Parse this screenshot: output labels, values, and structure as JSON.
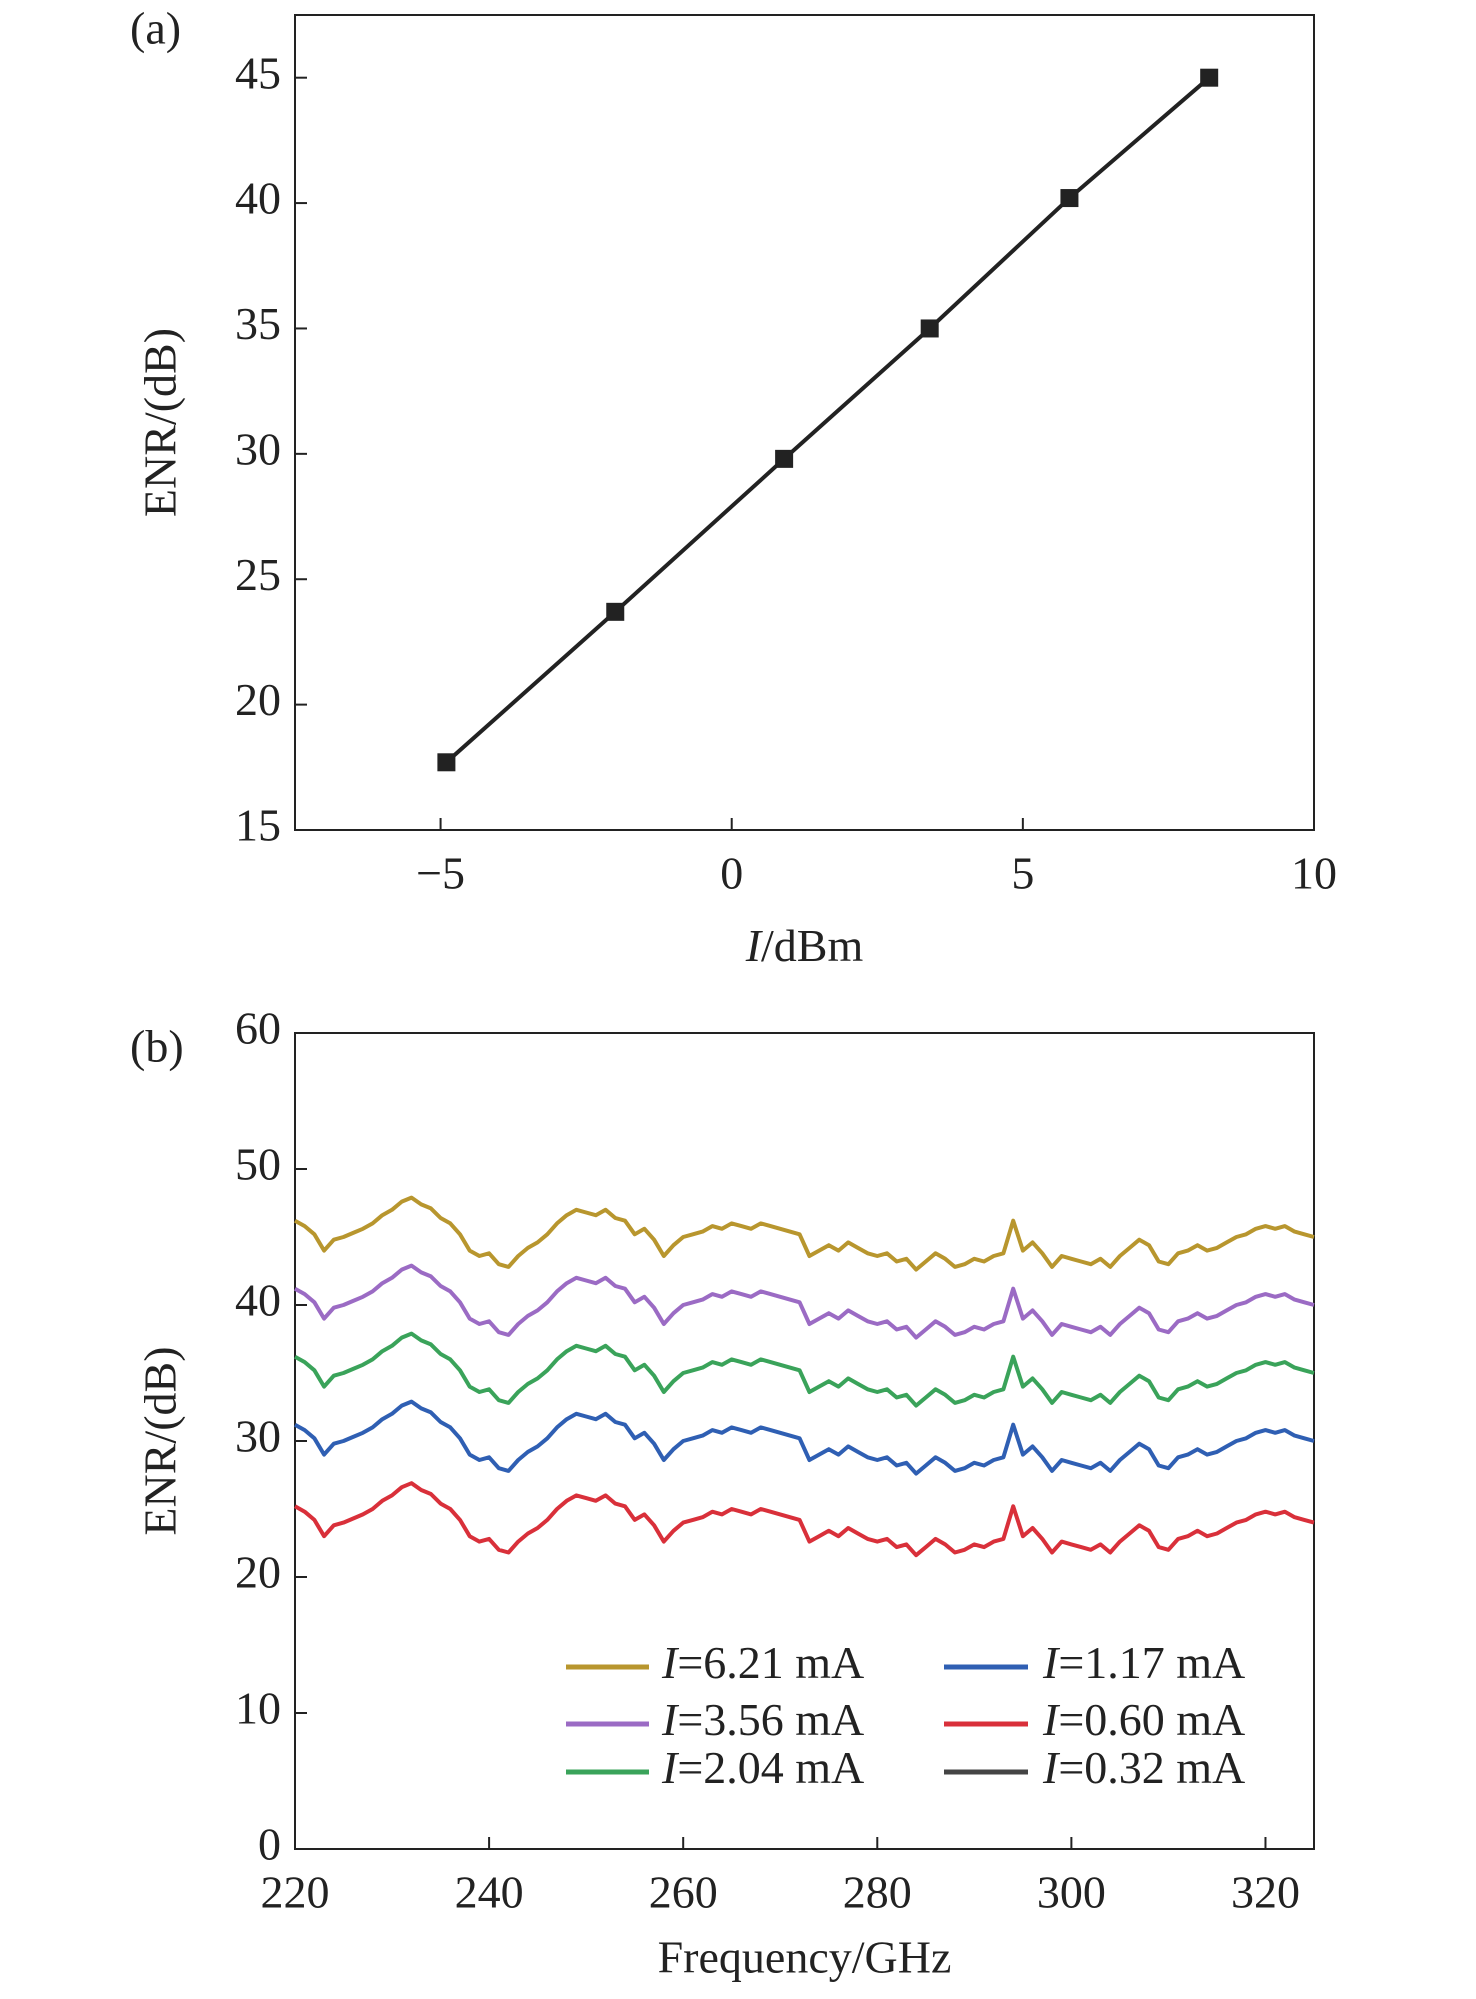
{
  "chart_data": [
    {
      "type": "line",
      "label": "(a)",
      "xlabel": "I/dBm",
      "ylabel": "ENR/(dB)",
      "xlim": [
        -7.5,
        10
      ],
      "xticks": [
        -5,
        0,
        5,
        10
      ],
      "ylim": [
        15,
        47.5
      ],
      "yticks": [
        15,
        20,
        25,
        30,
        35,
        40,
        45
      ],
      "marker": "square",
      "grid": false,
      "x": [
        -4.9,
        -2.0,
        0.9,
        3.4,
        5.8,
        8.2
      ],
      "series": [
        {
          "name": null,
          "color": "#222222",
          "values": [
            17.7,
            23.7,
            29.8,
            35.0,
            40.2,
            45.0
          ]
        }
      ]
    },
    {
      "type": "line",
      "label": "(b)",
      "xlabel": "Frequency/GHz",
      "ylabel": "ENR/(dB)",
      "xlim": [
        220,
        325
      ],
      "xticks": [
        220,
        240,
        260,
        280,
        300,
        320
      ],
      "ylim": [
        0,
        60
      ],
      "yticks": [
        0,
        10,
        20,
        30,
        40,
        50,
        60
      ],
      "grid": false,
      "legend": "lower right",
      "x": [
        220,
        221,
        222,
        223,
        224,
        225,
        226,
        227,
        228,
        229,
        230,
        231,
        232,
        233,
        234,
        235,
        236,
        237,
        238,
        239,
        240,
        241,
        242,
        243,
        244,
        245,
        246,
        247,
        248,
        249,
        250,
        251,
        252,
        253,
        254,
        255,
        256,
        257,
        258,
        259,
        260,
        261,
        262,
        263,
        264,
        265,
        266,
        267,
        268,
        269,
        270,
        271,
        272,
        273,
        274,
        275,
        276,
        277,
        278,
        279,
        280,
        281,
        282,
        283,
        284,
        285,
        286,
        287,
        288,
        289,
        290,
        291,
        292,
        293,
        294,
        295,
        296,
        297,
        298,
        299,
        300,
        301,
        302,
        303,
        304,
        305,
        306,
        307,
        308,
        309,
        310,
        311,
        312,
        313,
        314,
        315,
        316,
        317,
        318,
        319,
        320,
        321,
        322,
        323,
        324,
        325
      ],
      "series": [
        {
          "name": "I=6.21 mA",
          "color": "#b8962e",
          "values": [
            46.2,
            45.8,
            45.2,
            44.0,
            44.8,
            45.0,
            45.3,
            45.6,
            46.0,
            46.6,
            47.0,
            47.6,
            47.9,
            47.4,
            47.1,
            46.4,
            46.0,
            45.2,
            44.0,
            43.6,
            43.8,
            43.0,
            42.8,
            43.6,
            44.2,
            44.6,
            45.2,
            46.0,
            46.6,
            47.0,
            46.8,
            46.6,
            47.0,
            46.4,
            46.2,
            45.2,
            45.6,
            44.8,
            43.6,
            44.4,
            45.0,
            45.2,
            45.4,
            45.8,
            45.6,
            46.0,
            45.8,
            45.6,
            46.0,
            45.8,
            45.6,
            45.4,
            45.2,
            43.6,
            44.0,
            44.4,
            44.0,
            44.6,
            44.2,
            43.8,
            43.6,
            43.8,
            43.2,
            43.4,
            42.6,
            43.2,
            43.8,
            43.4,
            42.8,
            43.0,
            43.4,
            43.2,
            43.6,
            43.8,
            46.2,
            44.0,
            44.6,
            43.8,
            42.8,
            43.6,
            43.4,
            43.2,
            43.0,
            43.4,
            42.8,
            43.6,
            44.2,
            44.8,
            44.4,
            43.2,
            43.0,
            43.8,
            44.0,
            44.4,
            44.0,
            44.2,
            44.6,
            45.0,
            45.2,
            45.6,
            45.8,
            45.6,
            45.8,
            45.4,
            45.2,
            45.0
          ]
        },
        {
          "name": "I=3.56 mA",
          "color": "#9b6bc4",
          "values": [
            41.2,
            40.8,
            40.2,
            39.0,
            39.8,
            40.0,
            40.3,
            40.6,
            41.0,
            41.6,
            42.0,
            42.6,
            42.9,
            42.4,
            42.1,
            41.4,
            41.0,
            40.2,
            39.0,
            38.6,
            38.8,
            38.0,
            37.8,
            38.6,
            39.2,
            39.6,
            40.2,
            41.0,
            41.6,
            42.0,
            41.8,
            41.6,
            42.0,
            41.4,
            41.2,
            40.2,
            40.6,
            39.8,
            38.6,
            39.4,
            40.0,
            40.2,
            40.4,
            40.8,
            40.6,
            41.0,
            40.8,
            40.6,
            41.0,
            40.8,
            40.6,
            40.4,
            40.2,
            38.6,
            39.0,
            39.4,
            39.0,
            39.6,
            39.2,
            38.8,
            38.6,
            38.8,
            38.2,
            38.4,
            37.6,
            38.2,
            38.8,
            38.4,
            37.8,
            38.0,
            38.4,
            38.2,
            38.6,
            38.8,
            41.2,
            39.0,
            39.6,
            38.8,
            37.8,
            38.6,
            38.4,
            38.2,
            38.0,
            38.4,
            37.8,
            38.6,
            39.2,
            39.8,
            39.4,
            38.2,
            38.0,
            38.8,
            39.0,
            39.4,
            39.0,
            39.2,
            39.6,
            40.0,
            40.2,
            40.6,
            40.8,
            40.6,
            40.8,
            40.4,
            40.2,
            40.0
          ]
        },
        {
          "name": "I=2.04 mA",
          "color": "#3aa35a",
          "values": [
            36.2,
            35.8,
            35.2,
            34.0,
            34.8,
            35.0,
            35.3,
            35.6,
            36.0,
            36.6,
            37.0,
            37.6,
            37.9,
            37.4,
            37.1,
            36.4,
            36.0,
            35.2,
            34.0,
            33.6,
            33.8,
            33.0,
            32.8,
            33.6,
            34.2,
            34.6,
            35.2,
            36.0,
            36.6,
            37.0,
            36.8,
            36.6,
            37.0,
            36.4,
            36.2,
            35.2,
            35.6,
            34.8,
            33.6,
            34.4,
            35.0,
            35.2,
            35.4,
            35.8,
            35.6,
            36.0,
            35.8,
            35.6,
            36.0,
            35.8,
            35.6,
            35.4,
            35.2,
            33.6,
            34.0,
            34.4,
            34.0,
            34.6,
            34.2,
            33.8,
            33.6,
            33.8,
            33.2,
            33.4,
            32.6,
            33.2,
            33.8,
            33.4,
            32.8,
            33.0,
            33.4,
            33.2,
            33.6,
            33.8,
            36.2,
            34.0,
            34.6,
            33.8,
            32.8,
            33.6,
            33.4,
            33.2,
            33.0,
            33.4,
            32.8,
            33.6,
            34.2,
            34.8,
            34.4,
            33.2,
            33.0,
            33.8,
            34.0,
            34.4,
            34.0,
            34.2,
            34.6,
            35.0,
            35.2,
            35.6,
            35.8,
            35.6,
            35.8,
            35.4,
            35.2,
            35.0
          ]
        },
        {
          "name": "I=1.17 mA",
          "color": "#2f5fb3",
          "values": [
            31.2,
            30.8,
            30.2,
            29.0,
            29.8,
            30.0,
            30.3,
            30.6,
            31.0,
            31.6,
            32.0,
            32.6,
            32.9,
            32.4,
            32.1,
            31.4,
            31.0,
            30.2,
            29.0,
            28.6,
            28.8,
            28.0,
            27.8,
            28.6,
            29.2,
            29.6,
            30.2,
            31.0,
            31.6,
            32.0,
            31.8,
            31.6,
            32.0,
            31.4,
            31.2,
            30.2,
            30.6,
            29.8,
            28.6,
            29.4,
            30.0,
            30.2,
            30.4,
            30.8,
            30.6,
            31.0,
            30.8,
            30.6,
            31.0,
            30.8,
            30.6,
            30.4,
            30.2,
            28.6,
            29.0,
            29.4,
            29.0,
            29.6,
            29.2,
            28.8,
            28.6,
            28.8,
            28.2,
            28.4,
            27.6,
            28.2,
            28.8,
            28.4,
            27.8,
            28.0,
            28.4,
            28.2,
            28.6,
            28.8,
            31.2,
            29.0,
            29.6,
            28.8,
            27.8,
            28.6,
            28.4,
            28.2,
            28.0,
            28.4,
            27.8,
            28.6,
            29.2,
            29.8,
            29.4,
            28.2,
            28.0,
            28.8,
            29.0,
            29.4,
            29.0,
            29.2,
            29.6,
            30.0,
            30.2,
            30.6,
            30.8,
            30.6,
            30.8,
            30.4,
            30.2,
            30.0
          ]
        },
        {
          "name": "I=0.60 mA",
          "color": "#d9303a",
          "values": [
            25.2,
            24.8,
            24.2,
            23.0,
            23.8,
            24.0,
            24.3,
            24.6,
            25.0,
            25.6,
            26.0,
            26.6,
            26.9,
            26.4,
            26.1,
            25.4,
            25.0,
            24.2,
            23.0,
            22.6,
            22.8,
            22.0,
            21.8,
            22.6,
            23.2,
            23.6,
            24.2,
            25.0,
            25.6,
            26.0,
            25.8,
            25.6,
            26.0,
            25.4,
            25.2,
            24.2,
            24.6,
            23.8,
            22.6,
            23.4,
            24.0,
            24.2,
            24.4,
            24.8,
            24.6,
            25.0,
            24.8,
            24.6,
            25.0,
            24.8,
            24.6,
            24.4,
            24.2,
            22.6,
            23.0,
            23.4,
            23.0,
            23.6,
            23.2,
            22.8,
            22.6,
            22.8,
            22.2,
            22.4,
            21.6,
            22.2,
            22.8,
            22.4,
            21.8,
            22.0,
            22.4,
            22.2,
            22.6,
            22.8,
            25.2,
            23.0,
            23.6,
            22.8,
            21.8,
            22.6,
            22.4,
            22.2,
            22.0,
            22.4,
            21.8,
            22.6,
            23.2,
            23.8,
            23.4,
            22.2,
            22.0,
            22.8,
            23.0,
            23.4,
            23.0,
            23.2,
            23.6,
            24.0,
            24.2,
            24.6,
            24.8,
            24.6,
            24.8,
            24.4,
            24.2,
            24.0
          ]
        },
        {
          "name": "I=0.32 mA",
          "color": "#444444",
          "values": [
            null,
            null,
            null,
            null,
            null,
            null,
            null,
            null,
            null,
            null,
            null,
            null,
            null,
            null,
            null,
            null,
            null,
            null,
            null,
            null,
            null,
            null,
            null,
            null,
            null,
            null,
            null,
            null,
            null,
            null,
            null,
            null,
            null,
            null,
            null,
            null,
            null,
            null,
            null,
            null,
            null,
            null,
            null,
            null,
            null,
            null,
            null,
            null,
            null,
            null,
            null,
            null,
            null,
            null,
            null,
            null,
            null,
            null,
            null,
            null,
            null,
            null,
            null,
            null,
            null,
            null,
            null,
            null,
            null,
            null,
            null,
            null,
            null,
            null,
            null,
            null,
            null,
            null,
            null,
            null,
            null,
            null,
            null,
            null,
            null,
            null,
            null,
            null,
            null,
            null,
            null,
            null,
            null,
            null,
            null,
            null,
            null,
            null,
            null,
            null,
            null,
            null,
            null,
            null,
            null,
            null
          ]
        }
      ]
    }
  ]
}
